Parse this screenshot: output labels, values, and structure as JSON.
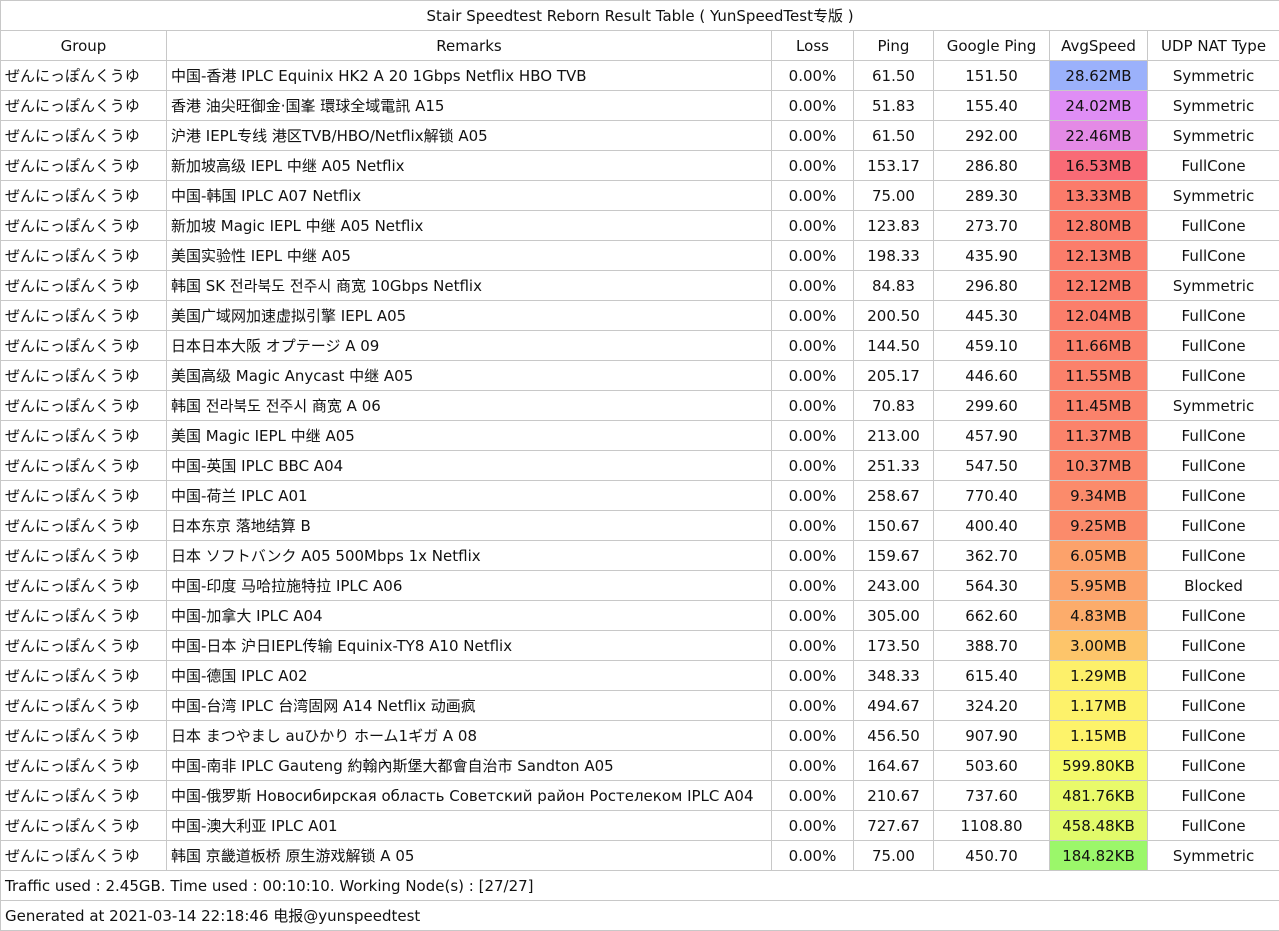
{
  "title": "Stair Speedtest Reborn Result Table ( YunSpeedTest专版 )",
  "headers": {
    "group": "Group",
    "remarks": "Remarks",
    "loss": "Loss",
    "ping": "Ping",
    "google_ping": "Google Ping",
    "avg_speed": "AvgSpeed",
    "udp_nat": "UDP NAT Type"
  },
  "rows": [
    {
      "group": "ぜんにっぽんくうゆ",
      "remarks": "中国-香港 IPLC Equinix HK2 A 20 1Gbps Netflix HBO TVB",
      "loss": "0.00%",
      "ping": "61.50",
      "google_ping": "151.50",
      "speed": "28.62MB",
      "color": "#9bb1fb",
      "nat": "Symmetric"
    },
    {
      "group": "ぜんにっぽんくうゆ",
      "remarks": "香港 油尖旺御金·国峯 環球全域電訊 A15",
      "loss": "0.00%",
      "ping": "51.83",
      "google_ping": "155.40",
      "speed": "24.02MB",
      "color": "#df8ef5",
      "nat": "Symmetric"
    },
    {
      "group": "ぜんにっぽんくうゆ",
      "remarks": "沪港 IEPL专线 港区TVB/HBO/Netflix解锁 A05",
      "loss": "0.00%",
      "ping": "61.50",
      "google_ping": "292.00",
      "speed": "22.46MB",
      "color": "#e48ae6",
      "nat": "Symmetric"
    },
    {
      "group": "ぜんにっぽんくうゆ",
      "remarks": "新加坡高级 IEPL 中继 A05  Netflix",
      "loss": "0.00%",
      "ping": "153.17",
      "google_ping": "286.80",
      "speed": "16.53MB",
      "color": "#f96b76",
      "nat": "FullCone"
    },
    {
      "group": "ぜんにっぽんくうゆ",
      "remarks": "中国-韩国 IPLC A07 Netflix",
      "loss": "0.00%",
      "ping": "75.00",
      "google_ping": "289.30",
      "speed": "13.33MB",
      "color": "#fb7b6b",
      "nat": "Symmetric"
    },
    {
      "group": "ぜんにっぽんくうゆ",
      "remarks": "新加坡 Magic IEPL 中继 A05  Netflix",
      "loss": "0.00%",
      "ping": "123.83",
      "google_ping": "273.70",
      "speed": "12.80MB",
      "color": "#fb7c6b",
      "nat": "FullCone"
    },
    {
      "group": "ぜんにっぽんくうゆ",
      "remarks": "美国实验性 IEPL 中继 A05",
      "loss": "0.00%",
      "ping": "198.33",
      "google_ping": "435.90",
      "speed": "12.13MB",
      "color": "#fb7d6b",
      "nat": "FullCone"
    },
    {
      "group": "ぜんにっぽんくうゆ",
      "remarks": "韩国 SK 전라북도 전주시 商宽 10Gbps Netflix",
      "loss": "0.00%",
      "ping": "84.83",
      "google_ping": "296.80",
      "speed": "12.12MB",
      "color": "#fb7d6b",
      "nat": "Symmetric"
    },
    {
      "group": "ぜんにっぽんくうゆ",
      "remarks": "美国广域网加速虚拟引擎 IEPL A05",
      "loss": "0.00%",
      "ping": "200.50",
      "google_ping": "445.30",
      "speed": "12.04MB",
      "color": "#fb7e6b",
      "nat": "FullCone"
    },
    {
      "group": "ぜんにっぽんくうゆ",
      "remarks": "日本日本大阪 オプテージ A 09",
      "loss": "0.00%",
      "ping": "144.50",
      "google_ping": "459.10",
      "speed": "11.66MB",
      "color": "#fb806b",
      "nat": "FullCone"
    },
    {
      "group": "ぜんにっぽんくうゆ",
      "remarks": "美国高级 Magic Anycast 中继 A05",
      "loss": "0.00%",
      "ping": "205.17",
      "google_ping": "446.60",
      "speed": "11.55MB",
      "color": "#fb816b",
      "nat": "FullCone"
    },
    {
      "group": "ぜんにっぽんくうゆ",
      "remarks": "韩国 전라북도 전주시 商宽 A 06",
      "loss": "0.00%",
      "ping": "70.83",
      "google_ping": "299.60",
      "speed": "11.45MB",
      "color": "#fb826b",
      "nat": "Symmetric"
    },
    {
      "group": "ぜんにっぽんくうゆ",
      "remarks": "美国 Magic IEPL 中继 A05",
      "loss": "0.00%",
      "ping": "213.00",
      "google_ping": "457.90",
      "speed": "11.37MB",
      "color": "#fb836b",
      "nat": "FullCone"
    },
    {
      "group": "ぜんにっぽんくうゆ",
      "remarks": "中国-英国 IPLC BBC A04",
      "loss": "0.00%",
      "ping": "251.33",
      "google_ping": "547.50",
      "speed": "10.37MB",
      "color": "#fb866b",
      "nat": "FullCone"
    },
    {
      "group": "ぜんにっぽんくうゆ",
      "remarks": "中国-荷兰 IPLC A01",
      "loss": "0.00%",
      "ping": "258.67",
      "google_ping": "770.40",
      "speed": "9.34MB",
      "color": "#fb8b6b",
      "nat": "FullCone"
    },
    {
      "group": "ぜんにっぽんくうゆ",
      "remarks": "日本东京 落地结算 B",
      "loss": "0.00%",
      "ping": "150.67",
      "google_ping": "400.40",
      "speed": "9.25MB",
      "color": "#fb8b6b",
      "nat": "FullCone"
    },
    {
      "group": "ぜんにっぽんくうゆ",
      "remarks": "日本 ソフトバンク A05 500Mbps 1x Netflix",
      "loss": "0.00%",
      "ping": "159.67",
      "google_ping": "362.70",
      "speed": "6.05MB",
      "color": "#fca26b",
      "nat": "FullCone"
    },
    {
      "group": "ぜんにっぽんくうゆ",
      "remarks": "中国-印度 马哈拉施特拉 IPLC A06",
      "loss": "0.00%",
      "ping": "243.00",
      "google_ping": "564.30",
      "speed": "5.95MB",
      "color": "#fca36b",
      "nat": "Blocked"
    },
    {
      "group": "ぜんにっぽんくうゆ",
      "remarks": "中国-加拿大 IPLC A04",
      "loss": "0.00%",
      "ping": "305.00",
      "google_ping": "662.60",
      "speed": "4.83MB",
      "color": "#fcac6b",
      "nat": "FullCone"
    },
    {
      "group": "ぜんにっぽんくうゆ",
      "remarks": "中国-日本 沪日IEPL传输 Equinix-TY8 A10 Netflix",
      "loss": "0.00%",
      "ping": "173.50",
      "google_ping": "388.70",
      "speed": "3.00MB",
      "color": "#fdc56a",
      "nat": "FullCone"
    },
    {
      "group": "ぜんにっぽんくうゆ",
      "remarks": "中国-德国 IPLC A02",
      "loss": "0.00%",
      "ping": "348.33",
      "google_ping": "615.40",
      "speed": "1.29MB",
      "color": "#fdf06a",
      "nat": "FullCone"
    },
    {
      "group": "ぜんにっぽんくうゆ",
      "remarks": "中国-台湾 IPLC 台湾固网 A14 Netflix 动画疯",
      "loss": "0.00%",
      "ping": "494.67",
      "google_ping": "324.20",
      "speed": "1.17MB",
      "color": "#fdf26a",
      "nat": "FullCone"
    },
    {
      "group": "ぜんにっぽんくうゆ",
      "remarks": "日本 まつやまし auひかり ホーム1ギガ A 08",
      "loss": "0.00%",
      "ping": "456.50",
      "google_ping": "907.90",
      "speed": "1.15MB",
      "color": "#fdf36a",
      "nat": "FullCone"
    },
    {
      "group": "ぜんにっぽんくうゆ",
      "remarks": "中国-南非 IPLC Gauteng 約翰內斯堡大都會自治市 Sandton A05",
      "loss": "0.00%",
      "ping": "164.67",
      "google_ping": "503.60",
      "speed": "599.80KB",
      "color": "#f4fa6a",
      "nat": "FullCone"
    },
    {
      "group": "ぜんにっぽんくうゆ",
      "remarks": "中国-俄罗斯 Новосибирская область Советский район Ростелеком IPLC A04",
      "loss": "0.00%",
      "ping": "210.67",
      "google_ping": "737.60",
      "speed": "481.76KB",
      "color": "#e9fa6a",
      "nat": "FullCone"
    },
    {
      "group": "ぜんにっぽんくうゆ",
      "remarks": "中国-澳大利亚 IPLC A01",
      "loss": "0.00%",
      "ping": "727.67",
      "google_ping": "1108.80",
      "speed": "458.48KB",
      "color": "#e2fa6a",
      "nat": "FullCone"
    },
    {
      "group": "ぜんにっぽんくうゆ",
      "remarks": "韩国 京畿道板桥 原生游戏解锁 A 05",
      "loss": "0.00%",
      "ping": "75.00",
      "google_ping": "450.70",
      "speed": "184.82KB",
      "color": "#9bf76a",
      "nat": "Symmetric"
    }
  ],
  "footer": {
    "traffic": "Traffic used : 2.45GB. Time used : 00:10:10. Working Node(s) : [27/27]",
    "generated": "Generated at 2021-03-14 22:18:46 电报@yunspeedtest"
  }
}
